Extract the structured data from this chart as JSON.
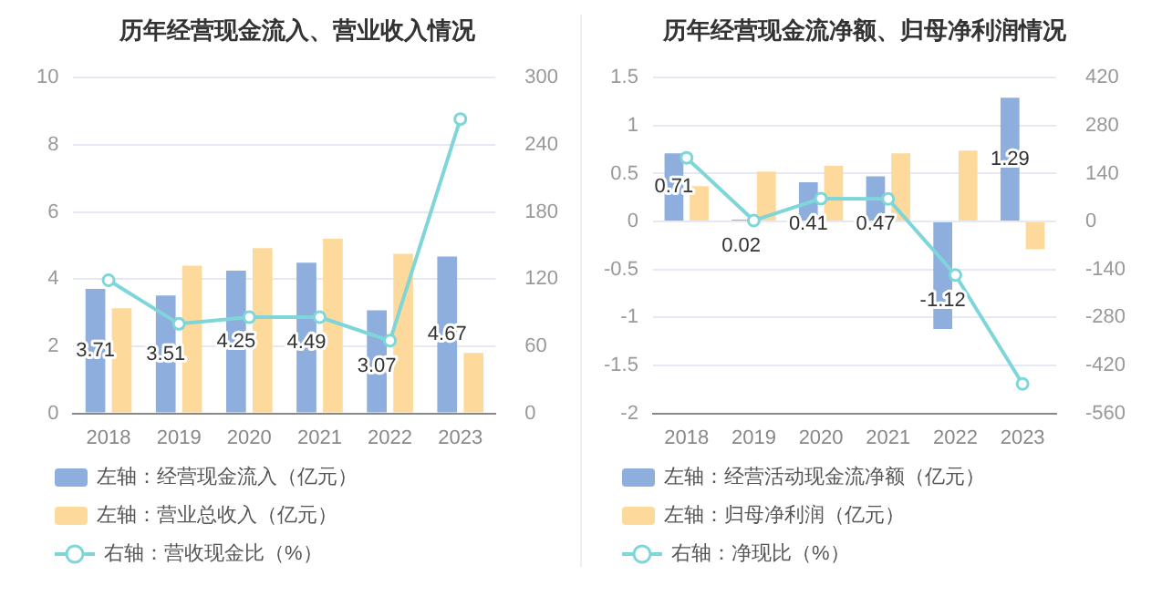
{
  "chart_data": [
    {
      "type": "bar",
      "title": "历年经营现金流入、营业收入情况",
      "categories": [
        "2018",
        "2019",
        "2020",
        "2021",
        "2022",
        "2023"
      ],
      "ylim": [
        0,
        10
      ],
      "yticks": [
        0,
        2,
        4,
        6,
        8,
        10
      ],
      "y2lim": [
        0,
        300
      ],
      "y2ticks": [
        0,
        60,
        120,
        180,
        240,
        300
      ],
      "grid": "y",
      "legend": "bottom",
      "series": [
        {
          "name": "左轴：经营现金流入（亿元）",
          "color": "#8eaedd",
          "values": [
            3.71,
            3.51,
            4.25,
            4.49,
            3.07,
            4.67
          ],
          "value_labels": [
            "3.71",
            "3.51",
            "4.25",
            "4.49",
            "3.07",
            "4.67"
          ]
        },
        {
          "name": "左轴：营业总收入（亿元）",
          "color": "#fdd99b",
          "values": [
            3.13,
            4.4,
            4.92,
            5.2,
            4.75,
            1.8
          ]
        },
        {
          "name": "右轴：营收现金比（%）",
          "type": "line",
          "axis": "y2",
          "marker": "circle",
          "color": "#7fd6d9",
          "values": [
            119,
            80,
            86,
            86,
            65,
            263
          ]
        }
      ]
    },
    {
      "type": "bar",
      "title": "历年经营现金流净额、归母净利润情况",
      "categories": [
        "2018",
        "2019",
        "2020",
        "2021",
        "2022",
        "2023"
      ],
      "ylim": [
        -2,
        1.5
      ],
      "yticks": [
        -2,
        -1.5,
        -1,
        -0.5,
        0,
        0.5,
        1,
        1.5
      ],
      "y2lim": [
        -560,
        420
      ],
      "y2ticks": [
        -560,
        -420,
        -280,
        -140,
        0,
        140,
        280,
        420
      ],
      "grid": "y",
      "legend": "bottom",
      "series": [
        {
          "name": "左轴：经营活动现金流净额（亿元）",
          "color": "#8eaedd",
          "values": [
            0.71,
            0.02,
            0.41,
            0.47,
            -1.12,
            1.29
          ],
          "value_labels": [
            "0.71",
            "0.02",
            "0.41",
            "0.47",
            "-1.12",
            "1.29"
          ]
        },
        {
          "name": "左轴：归母净利润（亿元）",
          "color": "#fdd99b",
          "values": [
            0.37,
            0.52,
            0.58,
            0.71,
            0.74,
            -0.29
          ]
        },
        {
          "name": "右轴：净现比（%）",
          "type": "line",
          "axis": "y2",
          "marker": "circle",
          "color": "#7fd6d9",
          "values": [
            186,
            3,
            67,
            66,
            -156,
            -474
          ]
        }
      ]
    }
  ]
}
